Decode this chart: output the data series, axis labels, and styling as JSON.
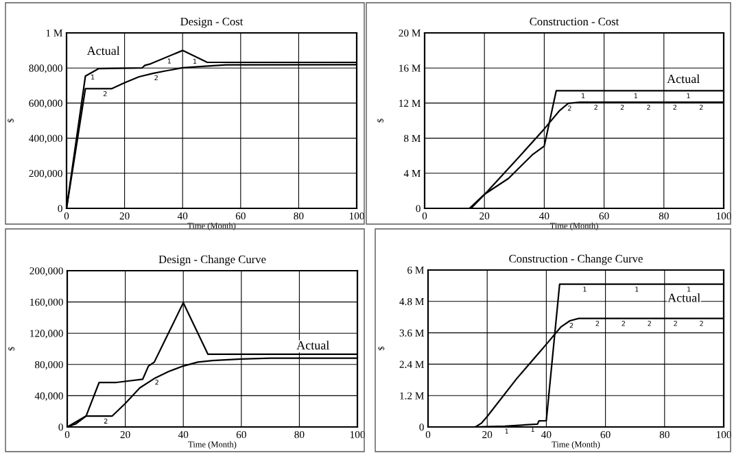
{
  "chart_data": [
    {
      "type": "line",
      "title": "Design - Cost",
      "xlabel": "Time (Month)",
      "ylabel": "$",
      "xlim": [
        0,
        100
      ],
      "xticks": [
        0,
        20,
        40,
        60,
        80,
        100
      ],
      "ylim": [
        0,
        1000000
      ],
      "yticks": [
        0,
        {
          "value": 200000,
          "label": "200,000"
        },
        {
          "value": 400000,
          "label": "400,000"
        },
        {
          "value": 600000,
          "label": "600,000"
        },
        {
          "value": 800000,
          "label": "800,000"
        },
        {
          "value": 1000000,
          "label": "1 M"
        }
      ],
      "grid": true,
      "legend": false,
      "annotations": [
        "Actual"
      ],
      "series": [
        {
          "name": "1",
          "color": "#000000",
          "x": [
            0,
            6.5,
            11,
            26,
            27,
            29,
            40,
            48.5,
            100
          ],
          "values": [
            0,
            754000,
            796000,
            800000,
            815000,
            824000,
            900000,
            832000,
            832000
          ]
        },
        {
          "name": "2",
          "color": "#000000",
          "x": [
            0,
            6.5,
            15.5,
            20,
            25,
            30,
            35,
            40,
            46,
            55,
            100
          ],
          "values": [
            0,
            682000,
            682000,
            716000,
            750000,
            770000,
            786000,
            801000,
            808000,
            818000,
            819000
          ]
        }
      ]
    },
    {
      "type": "line",
      "title": "Construction - Cost",
      "xlabel": "Time (Month)",
      "ylabel": "$",
      "xlim": [
        0,
        100
      ],
      "xticks": [
        0,
        20,
        40,
        60,
        80,
        100
      ],
      "ylim": [
        0,
        20000000
      ],
      "yticks": [
        0,
        {
          "value": 4000000,
          "label": "4 M"
        },
        {
          "value": 8000000,
          "label": "8 M"
        },
        {
          "value": 12000000,
          "label": "12 M"
        },
        {
          "value": 16000000,
          "label": "16 M"
        },
        {
          "value": 20000000,
          "label": "20 M"
        }
      ],
      "grid": true,
      "legend": false,
      "annotations": [
        "Actual"
      ],
      "series": [
        {
          "name": "1",
          "color": "#000000",
          "x": [
            0,
            15,
            20,
            28,
            36,
            40,
            44,
            100
          ],
          "values": [
            0,
            0,
            1600000,
            3400000,
            6100000,
            7100000,
            13400000,
            13400000
          ]
        },
        {
          "name": "2",
          "color": "#000000",
          "x": [
            0,
            15.5,
            20,
            30,
            40,
            45,
            48,
            52,
            100
          ],
          "values": [
            0,
            0,
            1570000,
            5270000,
            9050000,
            11100000,
            11970000,
            12100000,
            12100000
          ]
        }
      ]
    },
    {
      "type": "line",
      "title": "Design - Change Curve",
      "xlabel": "Time (Month)",
      "ylabel": "$",
      "xlim": [
        0,
        100
      ],
      "xticks": [
        0,
        20,
        40,
        60,
        80,
        100
      ],
      "ylim": [
        0,
        200000
      ],
      "yticks": [
        0,
        {
          "value": 40000,
          "label": "40,000"
        },
        {
          "value": 80000,
          "label": "80,000"
        },
        {
          "value": 120000,
          "label": "120,000"
        },
        {
          "value": 160000,
          "label": "160,000"
        },
        {
          "value": 200000,
          "label": "200,000"
        }
      ],
      "grid": true,
      "legend": false,
      "annotations": [
        "Actual"
      ],
      "series": [
        {
          "name": "1",
          "color": "#000000",
          "x": [
            0,
            3,
            6.5,
            11,
            17,
            26,
            28,
            30,
            40,
            48.5,
            100
          ],
          "values": [
            0,
            4000,
            14000,
            57000,
            57000,
            61000,
            78000,
            83000,
            159000,
            93000,
            93000
          ]
        },
        {
          "name": "2",
          "color": "#000000",
          "x": [
            0,
            6.5,
            15.5,
            20,
            25,
            30,
            35,
            40,
            45,
            50,
            60,
            70,
            100
          ],
          "values": [
            0,
            14000,
            14000,
            30000,
            50000,
            62000,
            71000,
            78000,
            83000,
            85000,
            87000,
            88000,
            88000
          ]
        }
      ]
    },
    {
      "type": "line",
      "title": "Construction - Change Curve",
      "xlabel": "Time (Month)",
      "ylabel": "$",
      "xlim": [
        0,
        100
      ],
      "xticks": [
        0,
        20,
        40,
        60,
        80,
        100
      ],
      "ylim": [
        0,
        6000000
      ],
      "yticks": [
        0,
        {
          "value": 1200000,
          "label": "1.2 M"
        },
        {
          "value": 2400000,
          "label": "2.4 M"
        },
        {
          "value": 3600000,
          "label": "3.6 M"
        },
        {
          "value": 4800000,
          "label": "4.8 M"
        },
        {
          "value": 6000000,
          "label": "6 M"
        }
      ],
      "grid": true,
      "legend": false,
      "annotations": [
        "Actual"
      ],
      "series": [
        {
          "name": "1",
          "color": "#000000",
          "x": [
            0,
            15,
            26,
            37,
            37.5,
            40,
            44.5,
            100
          ],
          "values": [
            0,
            0,
            30000,
            110000,
            230000,
            240000,
            5460000,
            5460000
          ]
        },
        {
          "name": "2",
          "color": "#000000",
          "x": [
            0,
            16,
            18,
            20,
            30,
            40,
            45,
            48,
            51,
            100
          ],
          "values": [
            0,
            0,
            140000,
            400000,
            1850000,
            3160000,
            3830000,
            4060000,
            4150000,
            4150000
          ]
        }
      ]
    }
  ]
}
